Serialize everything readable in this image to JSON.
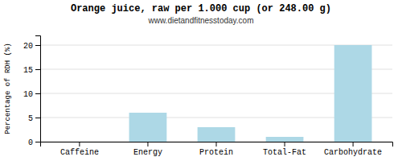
{
  "chart_data": {
    "type": "bar",
    "title": "Orange juice, raw per 1.000 cup (or 248.00 g)",
    "subtitle": "www.dietandfitnesstoday.com",
    "categories": [
      "Caffeine",
      "Energy",
      "Protein",
      "Total-Fat",
      "Carbohydrate"
    ],
    "values": [
      0,
      6,
      3,
      1,
      20
    ],
    "color": "#add8e6",
    "ylabel": "Percentage of RDH (%)",
    "ylim": [
      0,
      22
    ],
    "yticks": [
      0,
      5,
      10,
      15,
      20
    ],
    "grid": true
  }
}
